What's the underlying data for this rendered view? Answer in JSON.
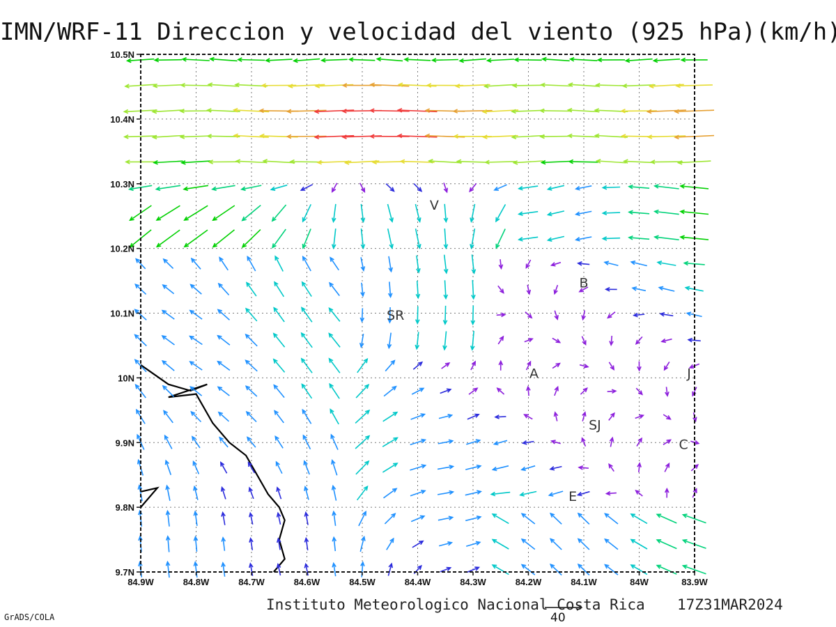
{
  "title": "IMN/WRF-11 Direccion y velocidad del viento (925 hPa)(km/h)",
  "footer": {
    "institution": "Instituto Meteorologico Nacional Costa Rica",
    "timestamp": "17Z31MAR2024",
    "software": "GrADS/COLA"
  },
  "reference_vector": {
    "label": "40",
    "speed_kmh": 40
  },
  "axes": {
    "x_ticks": [
      "84.9W",
      "84.8W",
      "84.7W",
      "84.6W",
      "84.5W",
      "84.4W",
      "84.3W",
      "84.2W",
      "84.1W",
      "84W",
      "83.9W"
    ],
    "y_ticks": [
      "10.5N",
      "10.4N",
      "10.3N",
      "10.2N",
      "10.1N",
      "10N",
      "9.9N",
      "9.8N",
      "9.7N"
    ],
    "lon_range": [
      -84.9,
      -83.9
    ],
    "lat_range": [
      9.7,
      10.5
    ],
    "grid": true
  },
  "places": [
    {
      "label": "V",
      "lon": -84.37,
      "lat": 10.26
    },
    {
      "label": "B",
      "lon": -84.1,
      "lat": 10.14
    },
    {
      "label": "SR",
      "lon": -84.44,
      "lat": 10.09
    },
    {
      "label": "A",
      "lon": -84.19,
      "lat": 10.0
    },
    {
      "label": "J",
      "lon": -83.91,
      "lat": 10.0
    },
    {
      "label": "SJ",
      "lon": -84.08,
      "lat": 9.92
    },
    {
      "label": "C",
      "lon": -83.92,
      "lat": 9.89
    },
    {
      "label": "E",
      "lon": -84.12,
      "lat": 9.81
    }
  ],
  "legend_colors": {
    "very_low": "#2b2bdc",
    "low": "#1e90ff",
    "moderate": "#00c8c8",
    "fresh": "#00d27a",
    "strong": "#00d000",
    "stronger": "#9ee632",
    "high": "#e6dc32",
    "very_high": "#e6a032",
    "extreme": "#f03c3c",
    "peak": "#f0146e",
    "calm": "#8c1edc"
  },
  "coastline_color": "#000000"
}
